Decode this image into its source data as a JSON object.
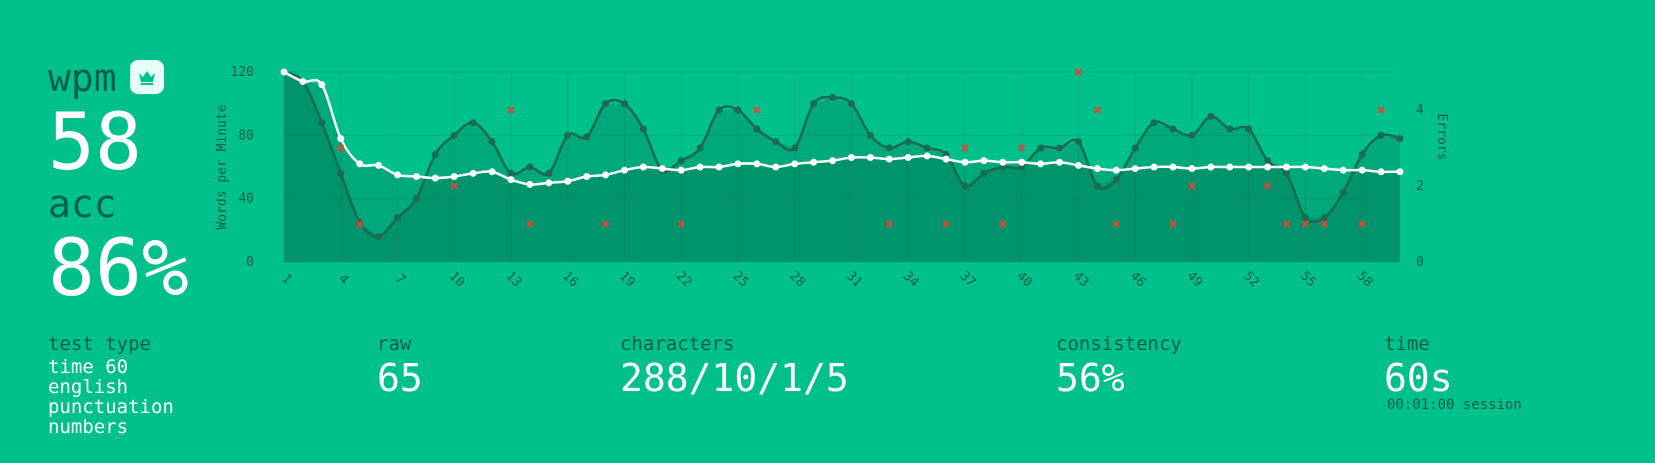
{
  "stats": {
    "wpm_label": "wpm",
    "wpm_value": "58",
    "acc_label": "acc",
    "acc_value": "86%",
    "crown_icon": "crown-icon",
    "test_type_label": "test type",
    "test_type_lines": [
      "time 60",
      "english",
      "punctuation",
      "numbers"
    ],
    "raw_label": "raw",
    "raw_value": "65",
    "characters_label": "characters",
    "characters_value": "288/10/1/5",
    "consistency_label": "consistency",
    "consistency_value": "56%",
    "time_label": "time",
    "time_value": "60s",
    "session_text": "00:01:00 session"
  },
  "colors": {
    "background": "#00c18c",
    "raw_line": "#1a6b4f",
    "wpm_line": "#ffffff",
    "error_mark": "#e0453a",
    "label": "#0d5e46"
  },
  "chart_data": {
    "type": "line",
    "x": [
      1,
      2,
      3,
      4,
      5,
      6,
      7,
      8,
      9,
      10,
      11,
      12,
      13,
      14,
      15,
      16,
      17,
      18,
      19,
      20,
      21,
      22,
      23,
      24,
      25,
      26,
      27,
      28,
      29,
      30,
      31,
      32,
      33,
      34,
      35,
      36,
      37,
      38,
      39,
      40,
      41,
      42,
      43,
      44,
      45,
      46,
      47,
      48,
      49,
      50,
      51,
      52,
      53,
      54,
      55,
      56,
      57,
      58,
      59,
      60
    ],
    "x_tick_labels": [
      "1",
      "4",
      "7",
      "10",
      "13",
      "16",
      "19",
      "22",
      "25",
      "28",
      "31",
      "34",
      "37",
      "40",
      "43",
      "46",
      "49",
      "52",
      "55",
      "58"
    ],
    "series": [
      {
        "values": [
          120,
          114,
          88,
          56,
          25,
          16,
          28,
          40,
          68,
          80,
          88,
          76,
          56,
          60,
          56,
          80,
          79,
          100,
          100,
          84,
          58,
          64,
          72,
          96,
          96,
          84,
          76,
          72,
          100,
          104,
          100,
          80,
          72,
          76,
          72,
          68,
          48,
          56,
          60,
          60,
          72,
          72,
          76,
          48,
          52,
          72,
          88,
          84,
          80,
          92,
          84,
          84,
          64,
          56,
          28,
          28,
          44,
          68,
          80,
          78
        ]
      },
      {
        "values": [
          120,
          114,
          112,
          78,
          62,
          61,
          55,
          54,
          53,
          54,
          56,
          57,
          52,
          49,
          50,
          51,
          54,
          55,
          58,
          60,
          59,
          58,
          60,
          60,
          62,
          62,
          60,
          62,
          63,
          64,
          66,
          66,
          65,
          66,
          67,
          65,
          63,
          64,
          63,
          63,
          62,
          63,
          61,
          59,
          58,
          59,
          60,
          60,
          59,
          60,
          60,
          60,
          60,
          60,
          60,
          59,
          58,
          58,
          57,
          57
        ]
      },
      {
        "values": [
          null,
          null,
          null,
          3,
          1,
          null,
          null,
          null,
          null,
          2,
          null,
          null,
          4,
          1,
          null,
          null,
          null,
          1,
          null,
          null,
          null,
          1,
          null,
          null,
          null,
          4,
          null,
          null,
          null,
          null,
          null,
          null,
          1,
          null,
          null,
          1,
          3,
          null,
          1,
          3,
          null,
          null,
          5,
          4,
          1,
          null,
          null,
          1,
          2,
          null,
          null,
          null,
          2,
          1,
          1,
          1,
          null,
          1,
          4,
          null
        ]
      }
    ],
    "y_left": {
      "label": "Words per Minute",
      "ticks": [
        0,
        40,
        80,
        120
      ],
      "range": [
        0,
        120
      ]
    },
    "y_right": {
      "label": "Errors",
      "ticks": [
        0,
        2,
        4
      ],
      "range": [
        0,
        5
      ]
    },
    "grid": true
  }
}
